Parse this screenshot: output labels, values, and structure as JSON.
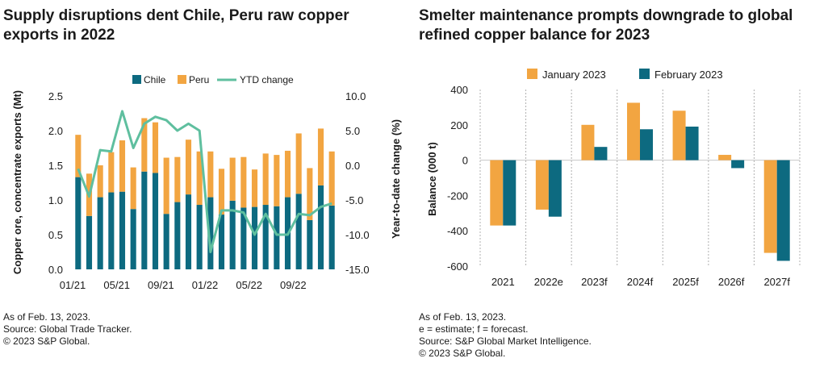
{
  "colors": {
    "chile": "#0d6a80",
    "peru": "#f2a541",
    "ytd": "#5fbf9f",
    "jan": "#f2a541",
    "feb": "#0d6a80",
    "grid": "#b0b0b0"
  },
  "left": {
    "title": "Supply disruptions dent Chile, Peru raw copper exports in 2022",
    "notes": [
      "As of Feb. 13, 2023.",
      "Source: Global Trade Tracker.",
      "© 2023 S&P Global."
    ]
  },
  "right": {
    "title": "Smelter maintenance prompts downgrade to global refined copper balance for 2023",
    "notes": [
      "As of Feb. 13, 2023.",
      "e = estimate; f = forecast.",
      "Source: S&P Global Market Intelligence.",
      "© 2023 S&P Global."
    ]
  },
  "chart_data": [
    {
      "type": "bar",
      "stacked": true,
      "title": "Supply disruptions dent Chile, Peru raw copper exports in 2022",
      "ylabel": "Copper ore, concentrate exports (Mt)",
      "y2label": "Year-to-date change (%)",
      "ylim": [
        0,
        2.5
      ],
      "yticks": [
        "0.0",
        "0.5",
        "1.0",
        "1.5",
        "2.0",
        "2.5"
      ],
      "y2lim": [
        -15,
        10
      ],
      "y2ticks": [
        "10.0",
        "5.0",
        "0.0",
        "-5.0",
        "-10.0",
        "-15.0"
      ],
      "xtick_labels": [
        "01/21",
        "05/21",
        "09/21",
        "01/22",
        "05/22",
        "09/22"
      ],
      "xtick_index": [
        0,
        4,
        8,
        12,
        16,
        20
      ],
      "categories": [
        "01/21",
        "02/21",
        "03/21",
        "04/21",
        "05/21",
        "06/21",
        "07/21",
        "08/21",
        "09/21",
        "10/21",
        "11/21",
        "12/21",
        "01/22",
        "02/22",
        "03/22",
        "04/22",
        "05/22",
        "06/22",
        "07/22",
        "08/22",
        "09/22",
        "10/22",
        "11/22",
        "12/22"
      ],
      "legend": [
        "Chile",
        "Peru",
        "YTD change"
      ],
      "series": [
        {
          "name": "Chile",
          "axis": "left",
          "values": [
            1.33,
            0.77,
            1.04,
            1.11,
            1.12,
            0.87,
            1.41,
            1.39,
            0.8,
            0.97,
            1.08,
            0.93,
            1.04,
            0.79,
            0.99,
            0.89,
            0.9,
            0.93,
            0.91,
            1.04,
            1.09,
            0.71,
            1.21,
            0.92
          ]
        },
        {
          "name": "Peru",
          "axis": "left",
          "values": [
            0.61,
            0.61,
            0.46,
            0.58,
            0.74,
            0.6,
            0.77,
            0.73,
            0.81,
            0.65,
            0.79,
            0.77,
            0.66,
            0.66,
            0.62,
            0.73,
            0.54,
            0.74,
            0.74,
            0.67,
            0.87,
            0.75,
            0.82,
            0.78
          ]
        },
        {
          "name": "YTD change",
          "axis": "right",
          "type": "line",
          "values": [
            -0.5,
            -4.5,
            2.2,
            2.0,
            7.8,
            2.5,
            6.0,
            7.0,
            6.5,
            5.0,
            6.0,
            5.0,
            -12.5,
            -6.5,
            -6.5,
            -6.8,
            -10.0,
            -7.0,
            -10.0,
            -10.0,
            -7.0,
            -7.2,
            -6.0,
            -5.5
          ]
        }
      ]
    },
    {
      "type": "bar",
      "title": "Smelter maintenance prompts downgrade to global refined copper balance for 2023",
      "ylabel": "Balance (000 t)",
      "ylim": [
        -600,
        400
      ],
      "yticks": [
        "400",
        "200",
        "0",
        "-200",
        "-400",
        "-600"
      ],
      "categories": [
        "2021",
        "2022e",
        "2023f",
        "2024f",
        "2025f",
        "2026f",
        "2027f"
      ],
      "legend": [
        "January 2023",
        "February 2023"
      ],
      "series": [
        {
          "name": "January 2023",
          "values": [
            -370,
            -280,
            200,
            325,
            280,
            30,
            -525
          ]
        },
        {
          "name": "February 2023",
          "values": [
            -370,
            -320,
            75,
            175,
            190,
            -45,
            -570
          ]
        }
      ]
    }
  ]
}
